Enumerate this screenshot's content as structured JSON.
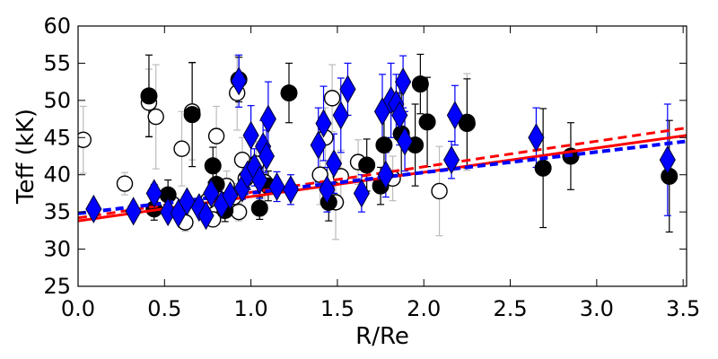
{
  "chart_data": {
    "type": "scatter",
    "xlabel": "R/Re",
    "ylabel": "Teff (kK)",
    "xlim": [
      0.0,
      3.52
    ],
    "ylim": [
      25,
      60
    ],
    "x_ticks": [
      "0.0",
      "0.5",
      "1.0",
      "1.5",
      "2.0",
      "2.5",
      "3.0",
      "3.5"
    ],
    "y_ticks": [
      "25",
      "30",
      "35",
      "40",
      "45",
      "50",
      "55",
      "60"
    ],
    "grid": false,
    "colors": {
      "filled": "#000000",
      "open": "#000000",
      "diamond": "#0000ff",
      "fit_red": "#ff0000",
      "fit_blue": "#0000ff"
    },
    "series": [
      {
        "marker": "open-circle",
        "errorbar_color": "#bbbbbb",
        "points": [
          {
            "x": 0.03,
            "y": 44.7,
            "err": 4.5
          },
          {
            "x": 0.27,
            "y": 38.8,
            "err": 1.5
          },
          {
            "x": 0.41,
            "y": 49.7,
            "err": 4.5
          },
          {
            "x": 0.45,
            "y": 47.8,
            "err": 7.0
          },
          {
            "x": 0.55,
            "y": 36.0,
            "err": 1.5
          },
          {
            "x": 0.6,
            "y": 43.5,
            "err": 5.0
          },
          {
            "x": 0.62,
            "y": 33.6,
            "err": 1.2
          },
          {
            "x": 0.66,
            "y": 48.5,
            "err": 6.5
          },
          {
            "x": 0.75,
            "y": 36.5,
            "err": 1.2
          },
          {
            "x": 0.78,
            "y": 34.0,
            "err": 1.0
          },
          {
            "x": 0.8,
            "y": 45.2,
            "err": 4.0
          },
          {
            "x": 0.86,
            "y": 38.5,
            "err": 2.0
          },
          {
            "x": 0.9,
            "y": 37.0,
            "err": 1.8
          },
          {
            "x": 0.92,
            "y": 51.0,
            "err": 5.0
          },
          {
            "x": 0.93,
            "y": 35.0,
            "err": 1.2
          },
          {
            "x": 0.95,
            "y": 42.0,
            "err": 3.0
          },
          {
            "x": 0.97,
            "y": 39.5,
            "err": 2.5
          },
          {
            "x": 1.03,
            "y": 41.5,
            "err": 3.0
          },
          {
            "x": 1.08,
            "y": 39.0,
            "err": 3.0
          },
          {
            "x": 1.4,
            "y": 40.0,
            "err": 4.0
          },
          {
            "x": 1.43,
            "y": 45.0,
            "err": 4.0
          },
          {
            "x": 1.47,
            "y": 50.3,
            "err": 4.5
          },
          {
            "x": 1.49,
            "y": 36.3,
            "err": 5.0
          },
          {
            "x": 1.52,
            "y": 39.8,
            "err": 3.5
          },
          {
            "x": 1.62,
            "y": 41.7,
            "err": 3.0
          },
          {
            "x": 1.82,
            "y": 39.5,
            "err": 3.0
          },
          {
            "x": 2.09,
            "y": 37.8,
            "err": 6.0
          },
          {
            "x": 2.25,
            "y": 47.1,
            "err": 6.5
          }
        ]
      },
      {
        "marker": "filled-circle",
        "errorbar_color": "#000000",
        "points": [
          {
            "x": 0.41,
            "y": 50.6,
            "err": 5.5
          },
          {
            "x": 0.44,
            "y": 35.4,
            "err": 1.5
          },
          {
            "x": 0.52,
            "y": 37.3,
            "err": 2.0
          },
          {
            "x": 0.66,
            "y": 48.1,
            "err": 7.0
          },
          {
            "x": 0.78,
            "y": 41.2,
            "err": 2.5
          },
          {
            "x": 0.8,
            "y": 38.7,
            "err": 2.5
          },
          {
            "x": 0.85,
            "y": 35.2,
            "err": 1.5
          },
          {
            "x": 0.93,
            "y": 52.8,
            "err": 3.0
          },
          {
            "x": 1.05,
            "y": 35.5,
            "err": 1.5
          },
          {
            "x": 1.1,
            "y": 38.5,
            "err": 2.0
          },
          {
            "x": 1.22,
            "y": 51.0,
            "err": 4.0
          },
          {
            "x": 1.45,
            "y": 36.3,
            "err": 2.5
          },
          {
            "x": 1.67,
            "y": 41.3,
            "err": 3.5
          },
          {
            "x": 1.75,
            "y": 38.5,
            "err": 2.5
          },
          {
            "x": 1.77,
            "y": 44.0,
            "err": 5.0
          },
          {
            "x": 1.87,
            "y": 45.5,
            "err": 5.5
          },
          {
            "x": 1.95,
            "y": 44.0,
            "err": 5.5
          },
          {
            "x": 1.98,
            "y": 52.2,
            "err": 4.0
          },
          {
            "x": 2.02,
            "y": 47.1,
            "err": 6.0
          },
          {
            "x": 2.25,
            "y": 46.9,
            "err": 6.0
          },
          {
            "x": 2.69,
            "y": 40.9,
            "err": 8.0
          },
          {
            "x": 2.85,
            "y": 42.5,
            "err": 4.5
          },
          {
            "x": 3.42,
            "y": 39.8,
            "err": 7.5
          }
        ]
      },
      {
        "marker": "diamond",
        "errorbar_color": "#0000ff",
        "points": [
          {
            "x": 0.09,
            "y": 35.4,
            "err": 0.8
          },
          {
            "x": 0.32,
            "y": 35.1,
            "err": 0.8
          },
          {
            "x": 0.44,
            "y": 37.5,
            "err": 1.2
          },
          {
            "x": 0.52,
            "y": 35.0,
            "err": 1.0
          },
          {
            "x": 0.58,
            "y": 34.8,
            "err": 1.0
          },
          {
            "x": 0.63,
            "y": 36.4,
            "err": 1.0
          },
          {
            "x": 0.7,
            "y": 35.6,
            "err": 1.0
          },
          {
            "x": 0.74,
            "y": 34.5,
            "err": 1.0
          },
          {
            "x": 0.77,
            "y": 37.5,
            "err": 1.5
          },
          {
            "x": 0.83,
            "y": 36.0,
            "err": 1.2
          },
          {
            "x": 0.88,
            "y": 37.2,
            "err": 1.5
          },
          {
            "x": 0.93,
            "y": 52.6,
            "err": 3.5
          },
          {
            "x": 0.95,
            "y": 38.2,
            "err": 1.5
          },
          {
            "x": 0.98,
            "y": 40.0,
            "err": 2.0
          },
          {
            "x": 1.0,
            "y": 45.3,
            "err": 4.0
          },
          {
            "x": 1.02,
            "y": 41.0,
            "err": 2.5
          },
          {
            "x": 1.05,
            "y": 39.3,
            "err": 2.5
          },
          {
            "x": 1.07,
            "y": 43.8,
            "err": 3.5
          },
          {
            "x": 1.09,
            "y": 42.5,
            "err": 3.5
          },
          {
            "x": 1.1,
            "y": 47.5,
            "err": 5.0
          },
          {
            "x": 1.15,
            "y": 38.4,
            "err": 2.0
          },
          {
            "x": 1.23,
            "y": 38.0,
            "err": 2.0
          },
          {
            "x": 1.39,
            "y": 44.0,
            "err": 5.0
          },
          {
            "x": 1.42,
            "y": 46.9,
            "err": 5.0
          },
          {
            "x": 1.44,
            "y": 38.0,
            "err": 3.0
          },
          {
            "x": 1.48,
            "y": 41.5,
            "err": 4.0
          },
          {
            "x": 1.52,
            "y": 48.0,
            "err": 5.0
          },
          {
            "x": 1.56,
            "y": 51.5,
            "err": 3.5
          },
          {
            "x": 1.64,
            "y": 37.5,
            "err": 2.5
          },
          {
            "x": 1.76,
            "y": 48.5,
            "err": 5.0
          },
          {
            "x": 1.78,
            "y": 40.0,
            "err": 3.0
          },
          {
            "x": 1.81,
            "y": 50.0,
            "err": 5.0
          },
          {
            "x": 1.84,
            "y": 49.5,
            "err": 4.0
          },
          {
            "x": 1.86,
            "y": 48.0,
            "err": 4.0
          },
          {
            "x": 1.88,
            "y": 52.5,
            "err": 3.5
          },
          {
            "x": 1.89,
            "y": 44.5,
            "err": 4.0
          },
          {
            "x": 2.16,
            "y": 42.0,
            "err": 2.5
          },
          {
            "x": 2.18,
            "y": 48.0,
            "err": 4.0
          },
          {
            "x": 2.65,
            "y": 45.0,
            "err": 4.0
          },
          {
            "x": 3.41,
            "y": 42.0,
            "err": 7.5
          }
        ]
      }
    ],
    "fit_lines": [
      {
        "color": "#ff0000",
        "style": "solid",
        "x": [
          0.0,
          3.52
        ],
        "y": [
          33.8,
          45.3
        ]
      },
      {
        "color": "#ff0000",
        "style": "dashed",
        "x": [
          0.0,
          3.52
        ],
        "y": [
          34.2,
          46.3
        ]
      },
      {
        "color": "#0000ff",
        "style": "dashed",
        "x": [
          0.0,
          3.52
        ],
        "y": [
          34.8,
          44.5
        ]
      }
    ]
  }
}
